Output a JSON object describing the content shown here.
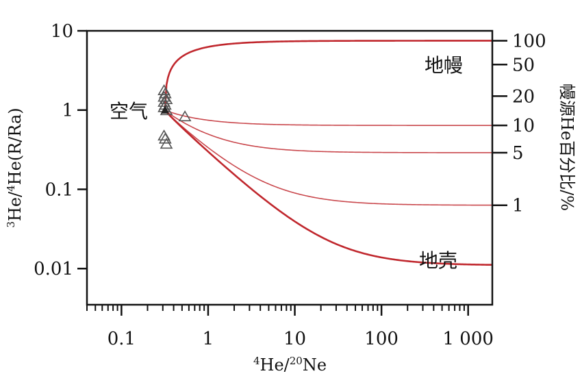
{
  "chart_data": {
    "type": "line",
    "xlabel": {
      "sup1": "4",
      "text1": "He/",
      "sup2": "20",
      "text2": "Ne"
    },
    "ylabel_left": {
      "sup1": "3",
      "text1": "He/",
      "sup2": "4",
      "text2": "He(R/Ra)"
    },
    "ylabel_right": "幔源He百分比/%",
    "x_scale": "log",
    "y_scale": "log",
    "xlim": [
      0.04,
      1900
    ],
    "ylim": [
      0.0035,
      10
    ],
    "x_ticks": [
      {
        "value": 0.1,
        "label": "0.1"
      },
      {
        "value": 1,
        "label": "1"
      },
      {
        "value": 10,
        "label": "10"
      },
      {
        "value": 100,
        "label": "100"
      },
      {
        "value": 1000,
        "label": "1 000"
      }
    ],
    "y_ticks_left": [
      {
        "value": 10,
        "label": "10"
      },
      {
        "value": 1,
        "label": "1"
      },
      {
        "value": 0.1,
        "label": "0.1"
      },
      {
        "value": 0.01,
        "label": "0.01"
      }
    ],
    "y_ticks_right": [
      {
        "value": 7.5,
        "label": "100"
      },
      {
        "value": 3.75,
        "label": "50"
      },
      {
        "value": 1.5,
        "label": "20"
      },
      {
        "value": 0.64,
        "label": "10"
      },
      {
        "value": 0.29,
        "label": "5"
      },
      {
        "value": 0.063,
        "label": "1"
      }
    ],
    "region_labels": {
      "mantle": "地幔",
      "crust": "地壳",
      "air": "空气"
    },
    "air_point": {
      "x": 0.318,
      "y": 1.0
    },
    "mixing_curves": [
      {
        "end_ratio": 7.5
      },
      {
        "end_ratio": 0.64
      },
      {
        "end_ratio": 0.29
      },
      {
        "end_ratio": 0.063
      },
      {
        "end_ratio": 0.011
      }
    ],
    "samples": [
      {
        "x": 0.31,
        "y": 1.75
      },
      {
        "x": 0.32,
        "y": 1.6
      },
      {
        "x": 0.31,
        "y": 1.45
      },
      {
        "x": 0.33,
        "y": 1.35
      },
      {
        "x": 0.31,
        "y": 1.25
      },
      {
        "x": 0.32,
        "y": 1.15
      },
      {
        "x": 0.31,
        "y": 1.07
      },
      {
        "x": 0.33,
        "y": 0.98
      },
      {
        "x": 0.54,
        "y": 0.82
      },
      {
        "x": 0.31,
        "y": 0.47
      },
      {
        "x": 0.32,
        "y": 0.43
      },
      {
        "x": 0.33,
        "y": 0.37
      }
    ],
    "colors": {
      "curves": "#c0272d",
      "samples": "#555555",
      "axes": "#111111"
    }
  }
}
